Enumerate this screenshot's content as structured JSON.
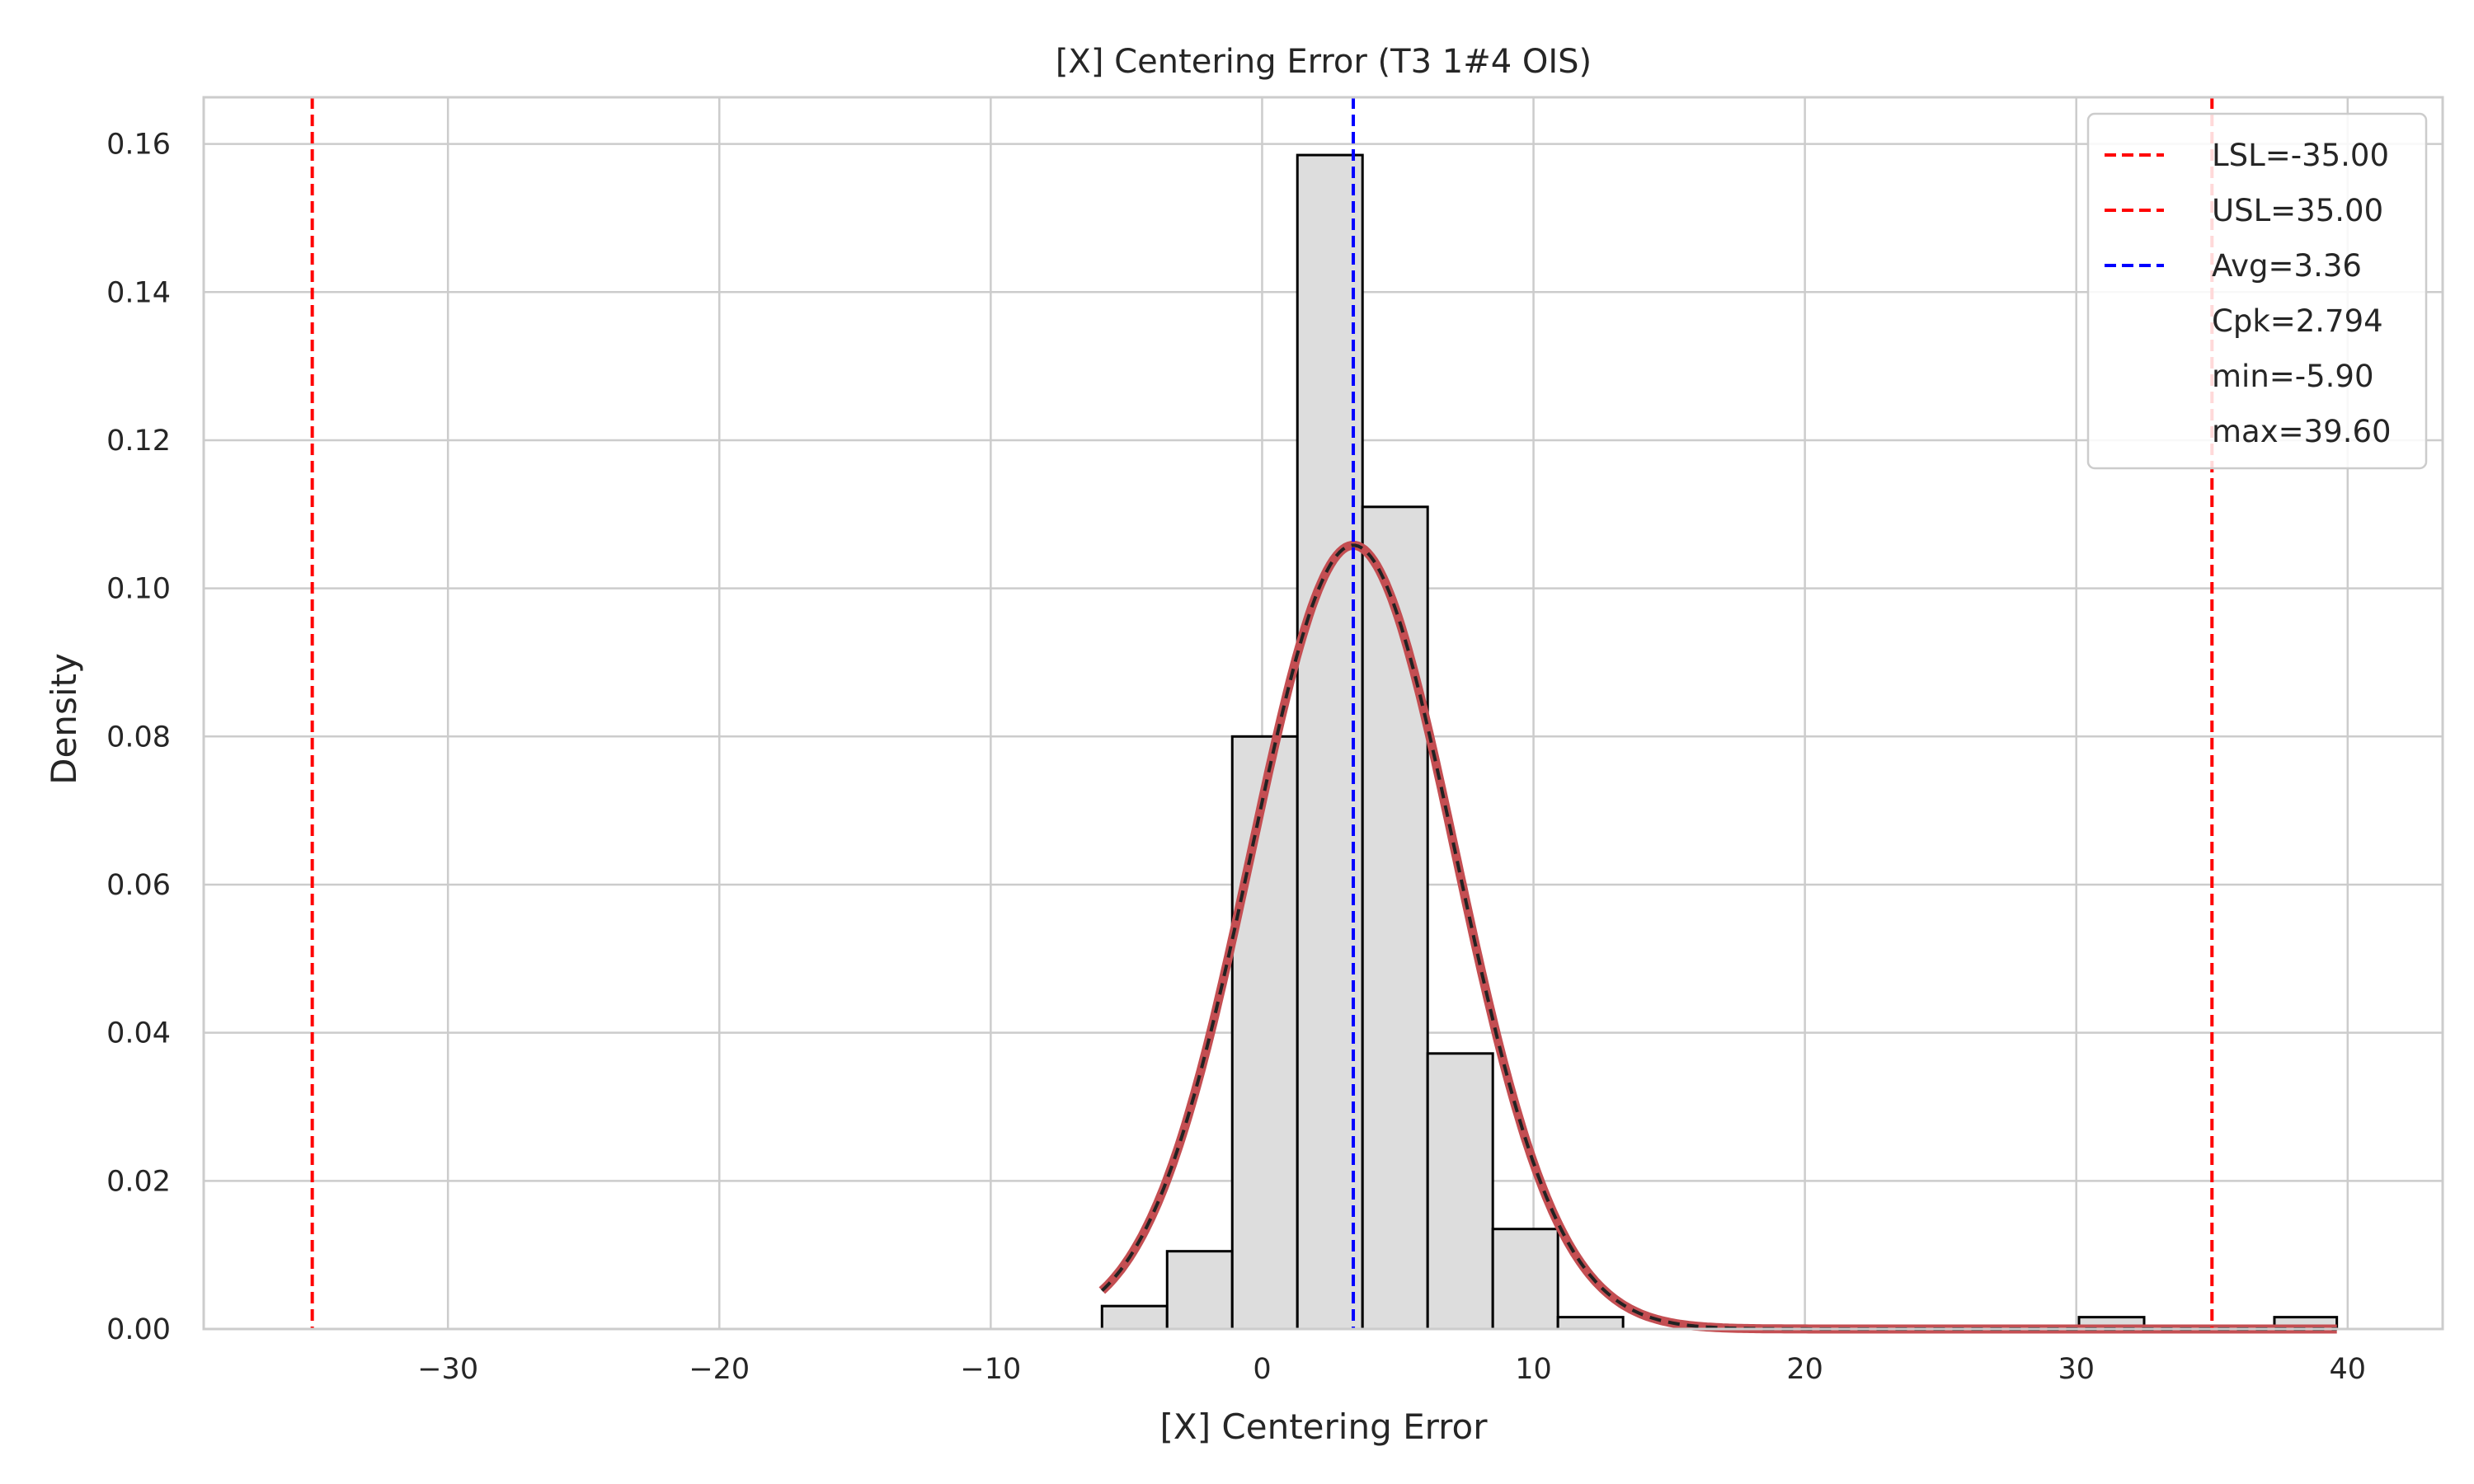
{
  "chart_data": {
    "type": "bar",
    "title": "[X] Centering Error (T3 1#4 OIS)",
    "xlabel": "[X] Centering Error",
    "ylabel": "Density",
    "xlim": [
      -39,
      43.5
    ],
    "ylim": [
      0,
      0.1663
    ],
    "x_ticks": [
      -30,
      -20,
      -10,
      0,
      10,
      20,
      30,
      40
    ],
    "x_tick_labels": [
      "−30",
      "−20",
      "−10",
      "0",
      "10",
      "20",
      "30",
      "40"
    ],
    "y_ticks": [
      0.0,
      0.02,
      0.04,
      0.06,
      0.08,
      0.1,
      0.12,
      0.14,
      0.16
    ],
    "y_tick_labels": [
      "0.00",
      "0.02",
      "0.04",
      "0.06",
      "0.08",
      "0.10",
      "0.12",
      "0.14",
      "0.16"
    ],
    "grid": true,
    "histogram": {
      "bin_edges": [
        -5.9,
        -3.5,
        -1.1,
        1.3,
        3.7,
        6.1,
        8.5,
        10.9,
        13.3,
        15.7,
        18.1,
        20.5,
        22.9,
        25.3,
        27.7,
        30.1,
        32.5,
        34.9,
        37.3,
        39.6
      ],
      "density": [
        0.0031,
        0.0105,
        0.08,
        0.1585,
        0.111,
        0.0372,
        0.0135,
        0.0016,
        0,
        0,
        0,
        0,
        0,
        0,
        0,
        0.0016,
        0,
        0,
        0.0016
      ],
      "fill": "#dddddd",
      "edge": "#000000"
    },
    "normal_fit": {
      "mean": 3.36,
      "std": 3.77,
      "x_range": [
        -5.9,
        39.6
      ],
      "color": "#c44e52"
    },
    "vlines": [
      {
        "label": "LSL=-35.00",
        "x": -35.0,
        "color": "#ff0000"
      },
      {
        "label": "USL=35.00",
        "x": 35.0,
        "color": "#ff0000"
      },
      {
        "label": "Avg=3.36",
        "x": 3.36,
        "color": "#0000ff"
      }
    ],
    "legend_text_entries": [
      "Cpk=2.794",
      "min=-5.90",
      "max=39.60"
    ],
    "legend_position": "top-right"
  }
}
